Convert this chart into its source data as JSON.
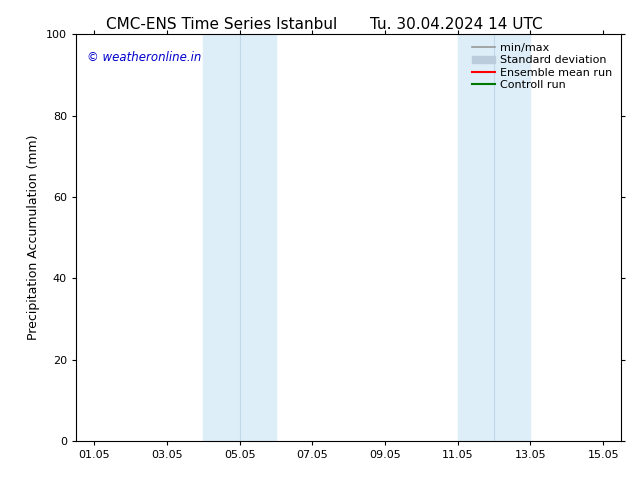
{
  "title_left": "CMC-ENS Time Series Istanbul",
  "title_right": "Tu. 30.04.2024 14 UTC",
  "ylabel": "Precipitation Accumulation (mm)",
  "ylim": [
    0,
    100
  ],
  "yticks": [
    0,
    20,
    40,
    60,
    80,
    100
  ],
  "x_start_day": 1,
  "x_end_day": 15,
  "xtick_days": [
    1,
    3,
    5,
    7,
    9,
    11,
    13,
    15
  ],
  "xtick_labels": [
    "01.05",
    "03.05",
    "05.05",
    "07.05",
    "09.05",
    "11.05",
    "13.05",
    "15.05"
  ],
  "shaded_bands": [
    {
      "x_start": 4.0,
      "x_end": 6.0,
      "color": "#ddeef8",
      "alpha": 1.0
    },
    {
      "x_start": 11.0,
      "x_end": 13.0,
      "color": "#ddeef8",
      "alpha": 1.0
    }
  ],
  "band_dividers": [
    {
      "x": 5.0
    },
    {
      "x": 12.0
    }
  ],
  "legend_entries": [
    {
      "label": "min/max",
      "color": "#999999",
      "linewidth": 1.2,
      "type": "line"
    },
    {
      "label": "Standard deviation",
      "color": "#bbccdd",
      "linewidth": 8,
      "type": "bar"
    },
    {
      "label": "Ensemble mean run",
      "color": "#ff0000",
      "linewidth": 1.5,
      "type": "line"
    },
    {
      "label": "Controll run",
      "color": "#007700",
      "linewidth": 1.5,
      "type": "line"
    }
  ],
  "watermark_text": "© weatheronline.in",
  "watermark_color": "#0000cc",
  "bg_color": "#ffffff",
  "title_fontsize": 11,
  "axis_label_fontsize": 9,
  "tick_fontsize": 8,
  "legend_fontsize": 8
}
